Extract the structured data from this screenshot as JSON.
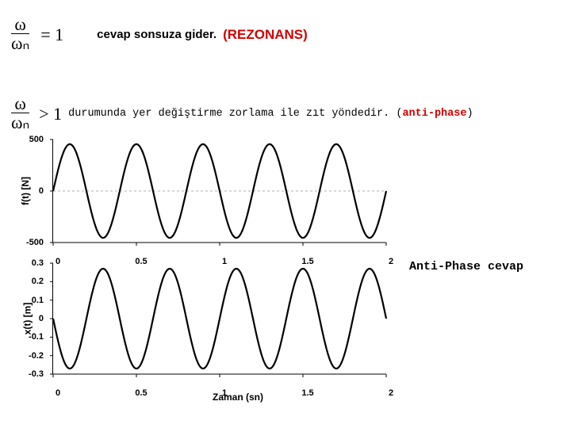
{
  "row1": {
    "frac_top": "ω",
    "frac_bot": "ωₙ",
    "eq": "= 1",
    "text": "cevap sonsuza gider.",
    "red": "(REZONANS)"
  },
  "row2": {
    "frac_top": "ω",
    "frac_bot": "ωₙ",
    "eq": "> 1",
    "text_before": "durumunda yer değiştirme zorlama ile zıt yöndedir. (",
    "ap": "anti-phase",
    "text_after": ")"
  },
  "chart1": {
    "ylabel": "f(t) [N]",
    "yticks": [
      {
        "v": "500",
        "pos": 0
      },
      {
        "v": "0",
        "pos": 50
      },
      {
        "v": "-500",
        "pos": 100
      }
    ],
    "xticks": [
      {
        "v": "0",
        "pos": 0
      },
      {
        "v": "0.5",
        "pos": 25
      },
      {
        "v": "1",
        "pos": 50
      },
      {
        "v": "1.5",
        "pos": 75
      },
      {
        "v": "2",
        "pos": 100
      }
    ],
    "amplitude": 500,
    "ylim": 550,
    "freq_hz": 2.5,
    "phase": 0,
    "line_color": "#000000",
    "line_width": 2.2,
    "dashed_mid": true
  },
  "chart2": {
    "ylabel": "x(t) [m]",
    "xlabel": "Zaman (sn)",
    "yticks": [
      {
        "v": "0.3",
        "pos": 0
      },
      {
        "v": "0.2",
        "pos": 16.67
      },
      {
        "v": "0.1",
        "pos": 33.33
      },
      {
        "v": "0",
        "pos": 50
      },
      {
        "v": "-0.1",
        "pos": 66.67
      },
      {
        "v": "-0.2",
        "pos": 83.33
      },
      {
        "v": "-0.3",
        "pos": 100
      }
    ],
    "xticks": [
      {
        "v": "0",
        "pos": 0
      },
      {
        "v": "0.5",
        "pos": 25
      },
      {
        "v": "1",
        "pos": 50
      },
      {
        "v": "1.5",
        "pos": 75
      },
      {
        "v": "2",
        "pos": 100
      }
    ],
    "amplitude": 0.27,
    "ylim": 0.3,
    "freq_hz": 2.5,
    "phase": 3.14159,
    "line_color": "#000000",
    "line_width": 2.2
  },
  "side_label": "Anti-Phase cevap"
}
